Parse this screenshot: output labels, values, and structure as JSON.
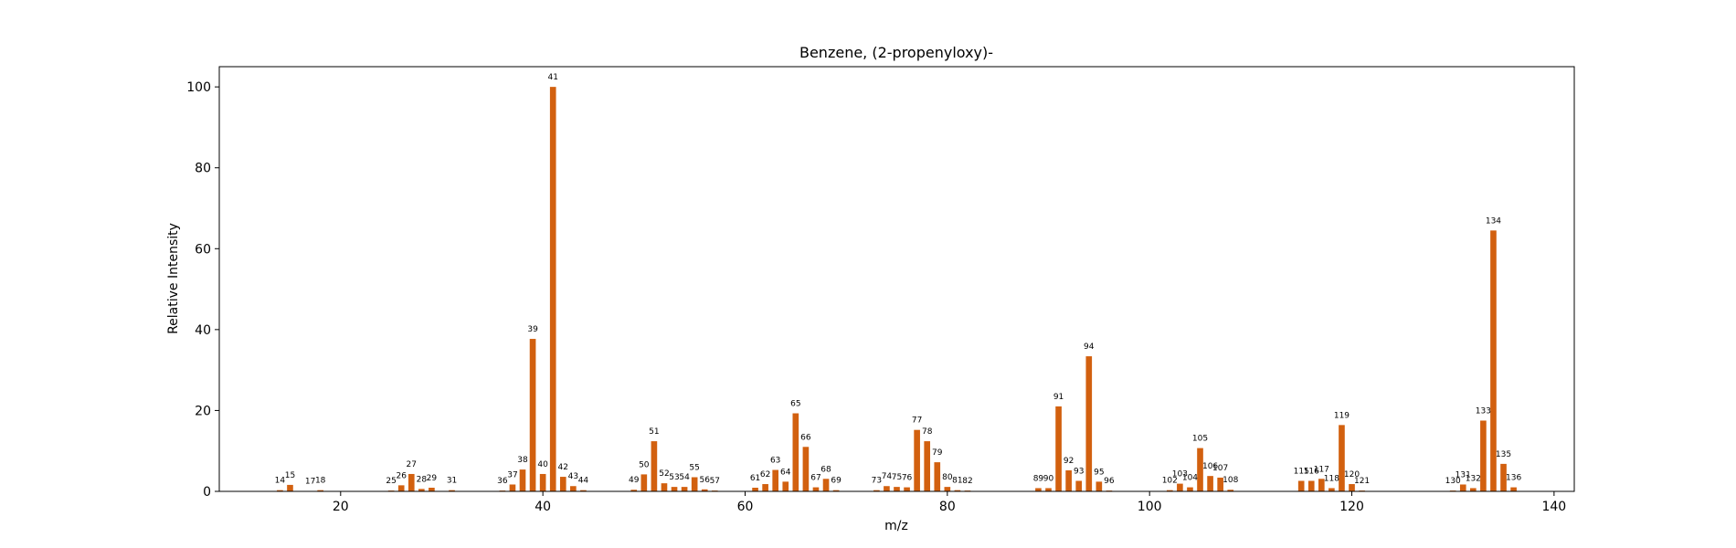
{
  "chart_data": {
    "type": "bar",
    "title": "Benzene, (2-propenyloxy)-",
    "xlabel": "m/z",
    "ylabel": "Relative Intensity",
    "xlim": [
      8,
      142
    ],
    "ylim": [
      0,
      105
    ],
    "xticks": [
      20,
      40,
      60,
      80,
      100,
      120,
      140
    ],
    "yticks": [
      0,
      20,
      40,
      60,
      80,
      100
    ],
    "grid": false,
    "bar_color": "#d2600f",
    "peaks": [
      {
        "mz": 14,
        "intensity": 0.3
      },
      {
        "mz": 15,
        "intensity": 1.6
      },
      {
        "mz": 17,
        "intensity": 0.1
      },
      {
        "mz": 18,
        "intensity": 0.3
      },
      {
        "mz": 25,
        "intensity": 0.2
      },
      {
        "mz": 26,
        "intensity": 1.5
      },
      {
        "mz": 27,
        "intensity": 4.3
      },
      {
        "mz": 28,
        "intensity": 0.6
      },
      {
        "mz": 29,
        "intensity": 0.9
      },
      {
        "mz": 31,
        "intensity": 0.3
      },
      {
        "mz": 36,
        "intensity": 0.2
      },
      {
        "mz": 37,
        "intensity": 1.7
      },
      {
        "mz": 38,
        "intensity": 5.4
      },
      {
        "mz": 39,
        "intensity": 37.7
      },
      {
        "mz": 40,
        "intensity": 4.3
      },
      {
        "mz": 41,
        "intensity": 100
      },
      {
        "mz": 42,
        "intensity": 3.6
      },
      {
        "mz": 43,
        "intensity": 1.3
      },
      {
        "mz": 44,
        "intensity": 0.3
      },
      {
        "mz": 49,
        "intensity": 0.4
      },
      {
        "mz": 50,
        "intensity": 4.2
      },
      {
        "mz": 51,
        "intensity": 12.4
      },
      {
        "mz": 52,
        "intensity": 2.0
      },
      {
        "mz": 53,
        "intensity": 1.1
      },
      {
        "mz": 54,
        "intensity": 1.1
      },
      {
        "mz": 55,
        "intensity": 3.5
      },
      {
        "mz": 56,
        "intensity": 0.5
      },
      {
        "mz": 57,
        "intensity": 0.2
      },
      {
        "mz": 61,
        "intensity": 0.9
      },
      {
        "mz": 62,
        "intensity": 1.8
      },
      {
        "mz": 63,
        "intensity": 5.3
      },
      {
        "mz": 64,
        "intensity": 2.4
      },
      {
        "mz": 65,
        "intensity": 19.3
      },
      {
        "mz": 66,
        "intensity": 11.0
      },
      {
        "mz": 67,
        "intensity": 1.0
      },
      {
        "mz": 68,
        "intensity": 3.1
      },
      {
        "mz": 69,
        "intensity": 0.3
      },
      {
        "mz": 73,
        "intensity": 0.3
      },
      {
        "mz": 74,
        "intensity": 1.3
      },
      {
        "mz": 75,
        "intensity": 1.1
      },
      {
        "mz": 76,
        "intensity": 1.0
      },
      {
        "mz": 77,
        "intensity": 15.2
      },
      {
        "mz": 78,
        "intensity": 12.4
      },
      {
        "mz": 79,
        "intensity": 7.2
      },
      {
        "mz": 80,
        "intensity": 1.1
      },
      {
        "mz": 81,
        "intensity": 0.3
      },
      {
        "mz": 82,
        "intensity": 0.2
      },
      {
        "mz": 89,
        "intensity": 0.8
      },
      {
        "mz": 90,
        "intensity": 0.8
      },
      {
        "mz": 91,
        "intensity": 21.0
      },
      {
        "mz": 92,
        "intensity": 5.2
      },
      {
        "mz": 93,
        "intensity": 2.6
      },
      {
        "mz": 94,
        "intensity": 33.4
      },
      {
        "mz": 95,
        "intensity": 2.4
      },
      {
        "mz": 96,
        "intensity": 0.2
      },
      {
        "mz": 102,
        "intensity": 0.3
      },
      {
        "mz": 103,
        "intensity": 1.9
      },
      {
        "mz": 104,
        "intensity": 1.0
      },
      {
        "mz": 105,
        "intensity": 10.7
      },
      {
        "mz": 106,
        "intensity": 3.8
      },
      {
        "mz": 107,
        "intensity": 3.4
      },
      {
        "mz": 108,
        "intensity": 0.4
      },
      {
        "mz": 115,
        "intensity": 2.6
      },
      {
        "mz": 116,
        "intensity": 2.6
      },
      {
        "mz": 117,
        "intensity": 3.1
      },
      {
        "mz": 118,
        "intensity": 0.8
      },
      {
        "mz": 119,
        "intensity": 16.4
      },
      {
        "mz": 120,
        "intensity": 1.8
      },
      {
        "mz": 121,
        "intensity": 0.2
      },
      {
        "mz": 130,
        "intensity": 0.2
      },
      {
        "mz": 131,
        "intensity": 1.7
      },
      {
        "mz": 132,
        "intensity": 0.8
      },
      {
        "mz": 133,
        "intensity": 17.5
      },
      {
        "mz": 134,
        "intensity": 64.5
      },
      {
        "mz": 135,
        "intensity": 6.8
      },
      {
        "mz": 136,
        "intensity": 1.0
      }
    ]
  }
}
